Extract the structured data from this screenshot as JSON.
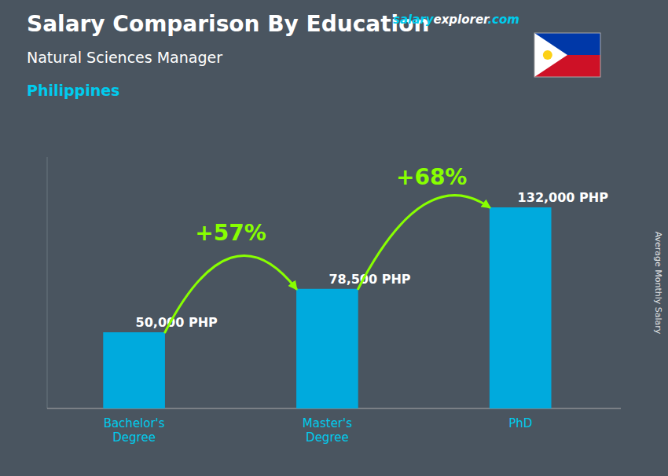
{
  "chart_data": {
    "type": "bar",
    "title": "Salary Comparison By Education",
    "subtitle": "Natural Sciences Manager",
    "ylabel": "Average Monthly Salary",
    "categories": [
      "Bachelor's\nDegree",
      "Master's\nDegree",
      "PhD"
    ],
    "values": [
      50000,
      78500,
      132000
    ],
    "value_labels": [
      "50,000 PHP",
      "78,500 PHP",
      "132,000 PHP"
    ],
    "data_labels": true,
    "color": "#00AADD",
    "ylim": [
      0,
      165000
    ],
    "grid": false,
    "tick_labels": "x",
    "annotations": {
      "country": "Philippines",
      "source": [
        "salary",
        "explorer",
        ".com"
      ],
      "changes": [
        "+57%",
        "+68%"
      ]
    }
  }
}
